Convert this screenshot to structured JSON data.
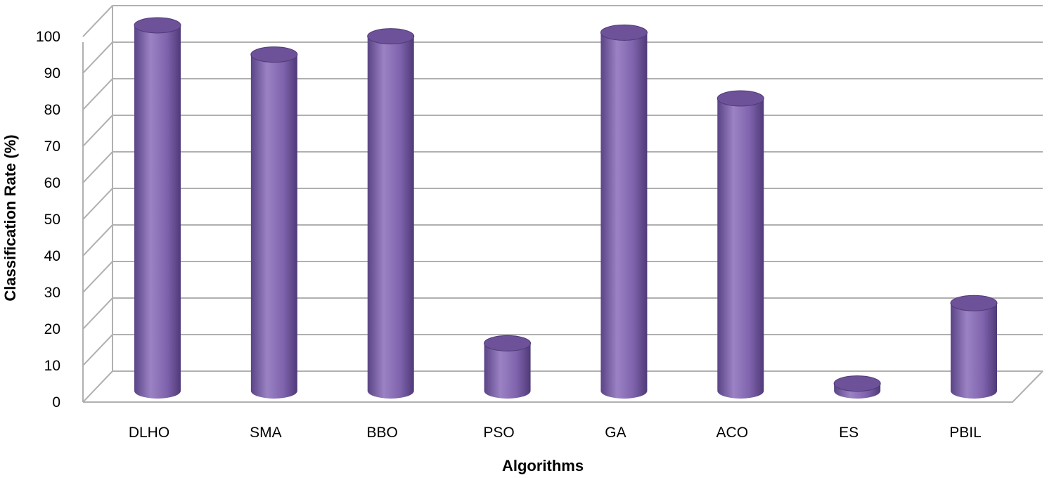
{
  "chart_data": {
    "type": "bar",
    "style": "3d-cylinder",
    "categories": [
      "DLHO",
      "SMA",
      "BBO",
      "PSO",
      "GA",
      "ACO",
      "ES",
      "PBIL"
    ],
    "values": [
      100,
      92,
      97,
      13,
      98,
      80,
      2,
      24
    ],
    "xlabel": "Algorithms",
    "ylabel": "Classification  Rate  (%)",
    "ylim": [
      0,
      100
    ],
    "yticks": [
      0,
      10,
      20,
      30,
      40,
      50,
      60,
      70,
      80,
      90,
      100
    ],
    "grid": true,
    "legend": "none",
    "colors": {
      "bar_light": "#9b82c4",
      "bar_mid": "#7f63ad",
      "bar_dark": "#4f3a78",
      "bar_top": "#6d5299",
      "grid": "#b0b0b0"
    }
  }
}
